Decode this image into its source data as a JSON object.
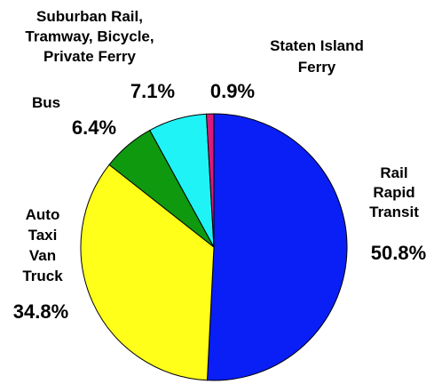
{
  "chart_data": {
    "type": "pie",
    "slices": [
      {
        "label_lines": [
          "Rail",
          "Rapid",
          "Transit"
        ],
        "value": 50.8,
        "value_label": "50.8%",
        "color": "#0a1ff5"
      },
      {
        "label_lines": [
          "Auto",
          "Taxi",
          "Van",
          "Truck"
        ],
        "value": 34.8,
        "value_label": "34.8%",
        "color": "#ffff1a"
      },
      {
        "label_lines": [
          "Bus"
        ],
        "value": 6.4,
        "value_label": "6.4%",
        "color": "#0f990f"
      },
      {
        "label_lines": [
          "Suburban Rail,",
          "Tramway, Bicycle,",
          "Private Ferry"
        ],
        "value": 7.1,
        "value_label": "7.1%",
        "color": "#1ff3f5"
      },
      {
        "label_lines": [
          "Staten Island",
          "Ferry"
        ],
        "value": 0.9,
        "value_label": "0.9%",
        "color": "#d81b7a"
      }
    ],
    "legend": "none",
    "labels_outside": true
  }
}
